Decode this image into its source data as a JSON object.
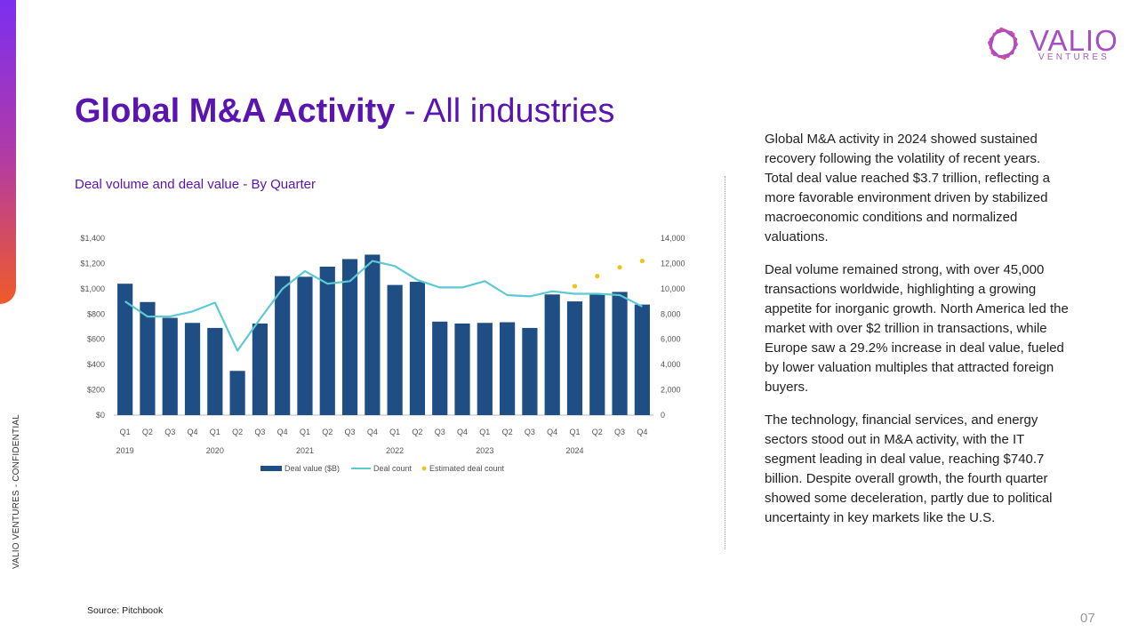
{
  "side_label": "VALIO VENTURES - CONFIDENTIAL",
  "logo": {
    "word": "VALIO",
    "sub": "VENTURES"
  },
  "title": {
    "bold": "Global M&A Activity",
    "light": " - All industries"
  },
  "subtitle": "Deal volume and deal value - By Quarter",
  "body": [
    "Global M&A activity in 2024 showed sustained recovery following the volatility of recent years. Total deal value reached $3.7 trillion, reflecting a more favorable environment driven by stabilized macroeconomic conditions and normalized valuations.",
    "Deal volume remained strong, with over 45,000 transactions worldwide, highlighting a growing appetite for inorganic growth. North America led the market with over $2 trillion in transactions, while Europe saw a 29.2% increase in deal value, fueled by lower valuation multiples that attracted foreign buyers.",
    "The technology, financial services, and energy sectors stood out in M&A activity, with the IT segment leading in deal value, reaching $740.7 billion. Despite overall growth, the fourth quarter showed some deceleration, partly due to political uncertainty in key markets like the U.S."
  ],
  "source": "Source: Pitchbook",
  "page_number": "07",
  "chart_data": {
    "type": "bar",
    "categories": [
      "Q1 2019",
      "Q2 2019",
      "Q3 2019",
      "Q4 2019",
      "Q1 2020",
      "Q2 2020",
      "Q3 2020",
      "Q4 2020",
      "Q1 2021",
      "Q2 2021",
      "Q3 2021",
      "Q4 2021",
      "Q1 2022",
      "Q2 2022",
      "Q3 2022",
      "Q4 2022",
      "Q1 2023",
      "Q2 2023",
      "Q3 2023",
      "Q4 2023",
      "Q1 2024",
      "Q2 2024",
      "Q3 2024",
      "Q4 2024"
    ],
    "quarter_labels": [
      "Q1",
      "Q2",
      "Q3",
      "Q4",
      "Q1",
      "Q2",
      "Q3",
      "Q4",
      "Q1",
      "Q2",
      "Q3",
      "Q4",
      "Q1",
      "Q2",
      "Q3",
      "Q4",
      "Q1",
      "Q2",
      "Q3",
      "Q4",
      "Q1",
      "Q2",
      "Q3",
      "Q4"
    ],
    "year_labels": [
      "2019",
      "2020",
      "2021",
      "2022",
      "2023",
      "2024"
    ],
    "series": [
      {
        "name": "Deal value ($B)",
        "axis": "left",
        "type": "bar",
        "color": "#1f4e85",
        "values": [
          1040,
          895,
          770,
          730,
          690,
          350,
          725,
          1100,
          1095,
          1175,
          1235,
          1270,
          1030,
          1055,
          740,
          725,
          730,
          735,
          690,
          955,
          900,
          955,
          975,
          875
        ]
      },
      {
        "name": "Deal count",
        "axis": "right",
        "type": "line",
        "color": "#5cc9d4",
        "values": [
          9000,
          7800,
          7800,
          8200,
          8900,
          5100,
          7600,
          10000,
          11400,
          10400,
          10600,
          12200,
          11800,
          10700,
          10100,
          10100,
          10600,
          9500,
          9400,
          9800,
          9600,
          9600,
          9500,
          8600
        ]
      },
      {
        "name": "Estimated deal count",
        "axis": "right",
        "type": "scatter",
        "color": "#f2c21b",
        "values": [
          null,
          null,
          null,
          null,
          null,
          null,
          null,
          null,
          null,
          null,
          null,
          null,
          null,
          null,
          null,
          null,
          null,
          null,
          null,
          null,
          10200,
          11000,
          11700,
          12200
        ]
      }
    ],
    "y_left": {
      "min": 0,
      "max": 1400,
      "ticks": [
        "$0",
        "$200",
        "$400",
        "$600",
        "$800",
        "$1,000",
        "$1,200",
        "$1,400"
      ]
    },
    "y_right": {
      "min": 0,
      "max": 14000,
      "ticks": [
        "0",
        "2,000",
        "4,000",
        "6,000",
        "8,000",
        "10,000",
        "12,000",
        "14,000"
      ]
    },
    "grid": false,
    "legend": "bottom-center"
  }
}
